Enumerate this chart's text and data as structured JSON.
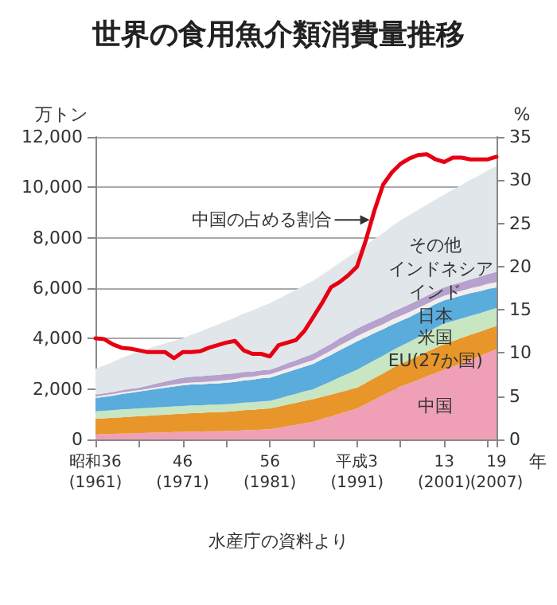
{
  "chart_data": {
    "type": "area",
    "title": "世界の食用魚介類消費量推移",
    "xlabel": "年",
    "ylabel": "万トン",
    "y2label": "%",
    "annotations": [
      "水産庁の資料より"
    ],
    "categories": [
      "昭和36\n(1961)",
      null,
      null,
      null,
      null,
      null,
      null,
      null,
      null,
      null,
      "46\n(1971)",
      null,
      null,
      null,
      null,
      null,
      null,
      null,
      null,
      null,
      "56\n(1981)",
      null,
      null,
      null,
      null,
      null,
      null,
      null,
      null,
      null,
      "平成3\n(1991)",
      null,
      null,
      null,
      null,
      null,
      null,
      null,
      null,
      null,
      "13\n(2001)",
      null,
      null,
      null,
      null,
      null,
      "19\n(2007)"
    ],
    "stacked": true,
    "grid": "y",
    "legend": false,
    "marker": "none",
    "ylim": [
      0,
      12000
    ],
    "yticks": [
      0,
      {
        "value": 2000,
        "label": "2,000"
      },
      {
        "value": 4000,
        "label": "4,000"
      },
      {
        "value": 6000,
        "label": "6,000"
      },
      {
        "value": 8000,
        "label": "8,000"
      },
      {
        "value": 10000,
        "label": "10,000"
      },
      {
        "value": 12000,
        "label": "12,000"
      }
    ],
    "y2lim": [
      0,
      35
    ],
    "y2ticks": [
      0,
      5,
      10,
      15,
      20,
      25,
      30,
      35
    ],
    "series": [
      {
        "name": "中国",
        "color": "#f0a0b6",
        "values": [
          200,
          210,
          220,
          230,
          240,
          250,
          260,
          270,
          280,
          290,
          300,
          310,
          310,
          320,
          320,
          330,
          340,
          360,
          370,
          390,
          400,
          460,
          520,
          580,
          640,
          700,
          810,
          910,
          1020,
          1120,
          1230,
          1400,
          1580,
          1750,
          1930,
          2100,
          2230,
          2360,
          2500,
          2630,
          2760,
          2890,
          3020,
          3150,
          3290,
          3440,
          3580
        ]
      },
      {
        "name": "EU(27か国)",
        "color": "#e8962a",
        "values": [
          620,
          630,
          640,
          650,
          660,
          670,
          680,
          690,
          700,
          710,
          720,
          730,
          740,
          750,
          760,
          770,
          780,
          800,
          810,
          820,
          830,
          840,
          860,
          870,
          890,
          900,
          880,
          870,
          850,
          840,
          820,
          840,
          860,
          870,
          890,
          900,
          920,
          950,
          970,
          1000,
          1020,
          1010,
          1010,
          1000,
          970,
          950,
          920
        ]
      },
      {
        "name": "米国",
        "color": "#c8e6c2",
        "values": [
          300,
          300,
          300,
          310,
          310,
          310,
          310,
          310,
          310,
          310,
          310,
          310,
          300,
          300,
          300,
          300,
          300,
          300,
          300,
          300,
          300,
          320,
          340,
          360,
          380,
          400,
          460,
          520,
          590,
          650,
          710,
          710,
          700,
          700,
          700,
          700,
          720,
          750,
          770,
          800,
          820,
          800,
          770,
          750,
          740,
          720,
          710
        ]
      },
      {
        "name": "日本",
        "color": "#5aacdc",
        "values": [
          520,
          550,
          580,
          610,
          640,
          670,
          700,
          730,
          760,
          790,
          820,
          830,
          830,
          840,
          840,
          850,
          860,
          880,
          890,
          910,
          920,
          940,
          950,
          970,
          980,
          1000,
          1030,
          1050,
          1080,
          1100,
          1130,
          1100,
          1080,
          1050,
          1030,
          1000,
          980,
          970,
          950,
          940,
          920,
          910,
          910,
          900,
          870,
          850,
          820
        ]
      },
      {
        "name": "インド",
        "color": "#f2eeee",
        "values": [
          60,
          60,
          60,
          60,
          60,
          60,
          60,
          70,
          70,
          80,
          80,
          80,
          90,
          90,
          100,
          100,
          110,
          120,
          120,
          130,
          130,
          130,
          140,
          140,
          150,
          150,
          160,
          170,
          190,
          200,
          210,
          210,
          200,
          200,
          200,
          200,
          200,
          190,
          190,
          180,
          180,
          190,
          190,
          200,
          200,
          210,
          210
        ]
      },
      {
        "name": "インドネシア",
        "color": "#b6a2cc",
        "values": [
          80,
          80,
          80,
          90,
          90,
          90,
          120,
          150,
          180,
          200,
          220,
          230,
          230,
          240,
          240,
          250,
          230,
          220,
          200,
          190,
          180,
          190,
          210,
          220,
          240,
          250,
          260,
          270,
          280,
          290,
          300,
          300,
          300,
          300,
          300,
          300,
          310,
          310,
          320,
          320,
          330,
          340,
          340,
          350,
          370,
          390,
          410
        ]
      },
      {
        "name": "その他",
        "color": "#e1e6ea",
        "values": [
          1020,
          1110,
          1190,
          1280,
          1360,
          1450,
          1470,
          1490,
          1510,
          1530,
          1550,
          1660,
          1770,
          1880,
          1990,
          2100,
          2210,
          2320,
          2420,
          2530,
          2640,
          2690,
          2740,
          2800,
          2850,
          2900,
          2930,
          2970,
          3000,
          3030,
          3060,
          3150,
          3240,
          3320,
          3410,
          3500,
          3540,
          3570,
          3610,
          3640,
          3680,
          3770,
          3860,
          3950,
          4030,
          4110,
          4190
        ]
      },
      {
        "name": "中国の占める割合",
        "type": "line",
        "axis": "y2",
        "color": "#e60012",
        "values": [
          11.7,
          11.6,
          11.0,
          10.6,
          10.5,
          10.3,
          10.1,
          10.1,
          10.1,
          9.4,
          10.1,
          10.1,
          10.2,
          10.6,
          10.9,
          11.2,
          11.4,
          10.3,
          9.9,
          9.9,
          9.6,
          10.9,
          11.2,
          11.5,
          12.6,
          14.2,
          15.8,
          17.6,
          18.2,
          19.0,
          20.0,
          23.0,
          26.5,
          29.5,
          30.9,
          31.9,
          32.5,
          32.9,
          33.0,
          32.4,
          32.1,
          32.6,
          32.6,
          32.4,
          32.4,
          32.4,
          32.7
        ]
      }
    ]
  }
}
